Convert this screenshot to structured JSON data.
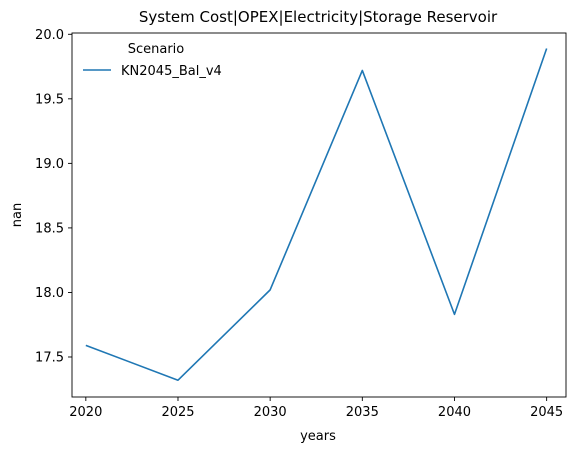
{
  "chart_data": {
    "type": "line",
    "title": "System Cost|OPEX|Electricity|Storage Reservoir",
    "xlabel": "years",
    "ylabel": "nan",
    "x": [
      2020,
      2025,
      2030,
      2035,
      2040,
      2045
    ],
    "series": [
      {
        "name": "KN2045_Bal_v4",
        "values": [
          17.59,
          17.32,
          18.02,
          19.72,
          17.83,
          19.89
        ],
        "color": "#1f77b4"
      }
    ],
    "xticks": [
      2020,
      2025,
      2030,
      2035,
      2040,
      2045
    ],
    "yticks": [
      17.5,
      18.0,
      18.5,
      19.0,
      19.5,
      20.0
    ],
    "ytick_labels": [
      "17.5",
      "18.0",
      "18.5",
      "19.0",
      "19.5",
      "20.0"
    ],
    "xlim": [
      2019.25,
      2046.05
    ],
    "ylim": [
      17.19,
      20.01
    ],
    "grid": false,
    "legend": {
      "title": "Scenario",
      "placement": "top-left"
    }
  }
}
